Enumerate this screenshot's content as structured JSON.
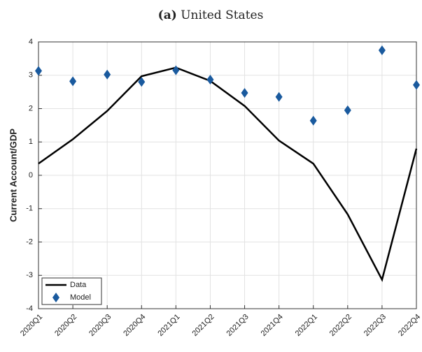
{
  "chart_data": {
    "type": "line",
    "label": "(a)",
    "title": "United States",
    "ylabel": "Current Account/GDP",
    "categories": [
      "2020Q1",
      "2020Q2",
      "2020Q3",
      "2020Q4",
      "2021Q1",
      "2021Q2",
      "2021Q3",
      "2021Q4",
      "2022Q1",
      "2022Q2",
      "2022Q3",
      "2022Q4"
    ],
    "series": [
      {
        "name": "Data",
        "color": "#000000",
        "style": "line",
        "values": [
          0.35,
          1.08,
          1.93,
          2.97,
          3.23,
          2.83,
          2.08,
          1.04,
          0.35,
          -1.17,
          -3.13,
          0.8
        ]
      },
      {
        "name": "Model",
        "color": "#1a5a9e",
        "style": "diamond",
        "values": [
          3.13,
          2.82,
          3.02,
          2.8,
          3.15,
          2.87,
          2.47,
          2.35,
          1.64,
          1.95,
          3.75,
          2.71
        ]
      }
    ],
    "ylim": [
      -4,
      4
    ],
    "yticks": [
      -4,
      -3,
      -2,
      -1,
      0,
      1,
      2,
      3,
      4
    ],
    "grid": true,
    "legend": "lower left"
  }
}
